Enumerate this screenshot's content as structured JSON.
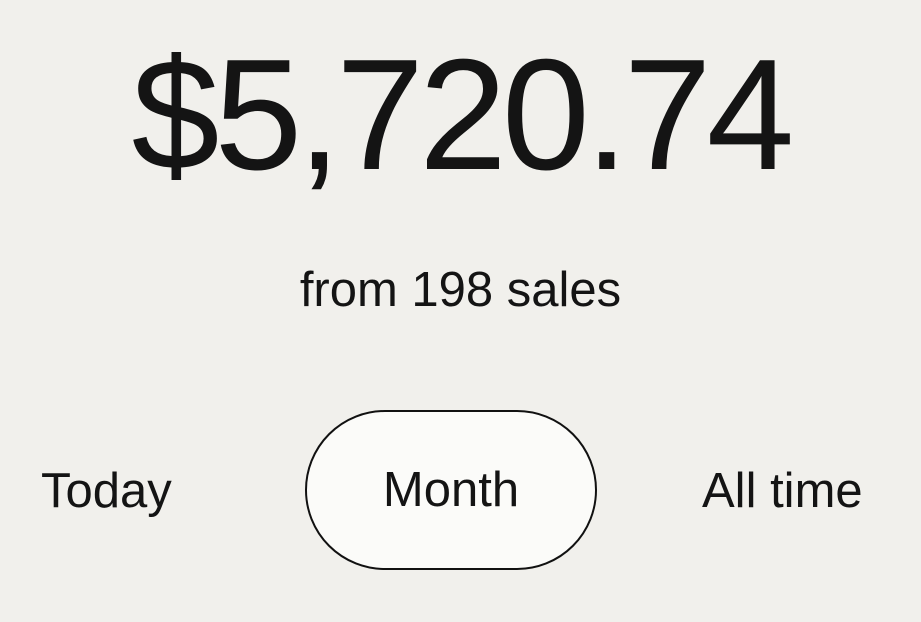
{
  "summary": {
    "total_amount": "$5,720.74",
    "subtitle": "from 198 sales"
  },
  "period_tabs": {
    "items": [
      {
        "label": "Today",
        "selected": false
      },
      {
        "label": "Month",
        "selected": true
      },
      {
        "label": "All time",
        "selected": false
      }
    ]
  },
  "colors": {
    "background": "#f1f0ec",
    "text": "#141414",
    "selected_tab_border": "#111111",
    "selected_tab_fill": "#fbfbf9"
  }
}
